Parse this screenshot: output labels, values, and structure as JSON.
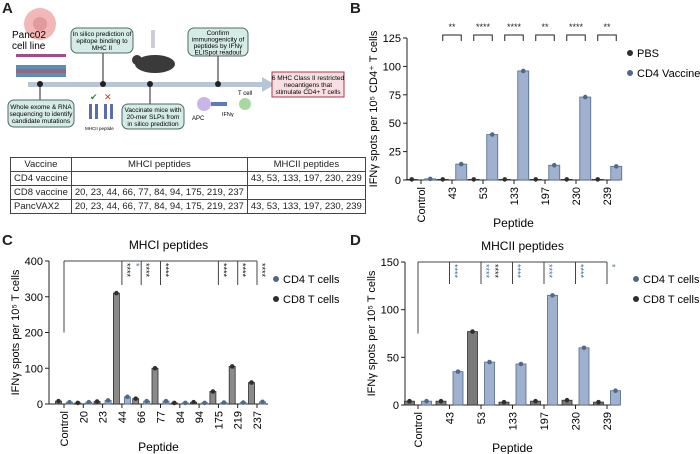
{
  "panel_labels": [
    "A",
    "B",
    "C",
    "D"
  ],
  "panelA": {
    "cell_line": [
      "Panc02",
      "cell line"
    ],
    "steps": [
      {
        "lines": [
          "Whole exome & RNA",
          "sequencing to identify",
          "candidate mutations"
        ]
      },
      {
        "lines": [
          "In silico prediction of",
          "epitope binding to",
          "MHC II"
        ]
      },
      {
        "lines": [
          "Vaccinate mice with",
          "20-mer SLPs from",
          "in silico prediction"
        ]
      },
      {
        "lines": [
          "Confirm",
          "immunogenicity of",
          "peptides by IFNγ",
          "ELISpot readout"
        ]
      }
    ],
    "result": [
      "6 MHC Class II restricted",
      "neoantigens that",
      "stimulate CD4+ T cells"
    ],
    "icon_labels": {
      "mhc": "MHCII peptide",
      "apc": "APC",
      "ifn": "IFNγ",
      "tcell": "T cell"
    },
    "table": {
      "headers": [
        "Vaccine",
        "MHCI peptides",
        "MHCII peptides"
      ],
      "rows": [
        [
          "CD4 vaccine",
          "",
          "43, 53, 133, 197, 230, 239"
        ],
        [
          "CD8 vaccine",
          "20, 23, 44, 66, 77, 84, 94, 175, 219, 237",
          ""
        ],
        [
          "PancVAX2",
          "20, 23, 44, 66, 77, 84, 94, 175, 219, 237",
          "43, 53, 133, 197, 230, 239"
        ]
      ]
    }
  },
  "chart_data": [
    {
      "id": "B",
      "type": "bar",
      "title": "",
      "xlabel": "Peptide",
      "ylabel": "IFNγ spots per 10⁵ CD4⁺ T cells",
      "ylim": [
        0,
        125
      ],
      "yticks": [
        0,
        25,
        50,
        75,
        100,
        125
      ],
      "categories": [
        "Control",
        "43",
        "53",
        "133",
        "197",
        "230",
        "239"
      ],
      "series": [
        {
          "name": "PBS",
          "color": "#2e2e2e",
          "fill": "#6e6e6e",
          "values": [
            0.5,
            0.5,
            0.5,
            0.5,
            0.5,
            0.5,
            0.5
          ]
        },
        {
          "name": "CD4 Vaccine",
          "color": "#4f6a88",
          "fill": "#9fb1cf",
          "values": [
            1,
            14,
            40,
            96,
            13,
            73,
            12
          ]
        }
      ],
      "significance": [
        {
          "category": "43",
          "label": "**",
          "color": "#222"
        },
        {
          "category": "53",
          "label": "****",
          "color": "#222"
        },
        {
          "category": "133",
          "label": "****",
          "color": "#222"
        },
        {
          "category": "197",
          "label": "**",
          "color": "#222"
        },
        {
          "category": "230",
          "label": "****",
          "color": "#222"
        },
        {
          "category": "239",
          "label": "**",
          "color": "#222"
        }
      ],
      "legend": "right"
    },
    {
      "id": "C",
      "type": "bar",
      "title": "MHCI peptides",
      "xlabel": "Peptide",
      "ylabel": "IFNγ spots per 10⁵ T cells",
      "ylim": [
        0,
        400
      ],
      "yticks": [
        0,
        100,
        200,
        300,
        400
      ],
      "categories": [
        "Control",
        "20",
        "23",
        "44",
        "66",
        "77",
        "84",
        "94",
        "175",
        "219",
        "237"
      ],
      "series": [
        {
          "name": "CD8 T cells",
          "color": "#2e2e2e",
          "fill": "#8a8a8a",
          "values": [
            8,
            3,
            7,
            310,
            15,
            100,
            3,
            5,
            35,
            105,
            60
          ]
        },
        {
          "name": "CD4 T cells",
          "color": "#4f6a88",
          "fill": "#9fb1cf",
          "values": [
            5,
            5,
            10,
            20,
            8,
            8,
            3,
            3,
            4,
            4,
            6
          ]
        }
      ],
      "significance": [
        {
          "category": "44",
          "label": "****",
          "color": "#222"
        },
        {
          "category": "44",
          "label": "*",
          "color": "#4a78a8"
        },
        {
          "category": "66",
          "label": "****",
          "color": "#222"
        },
        {
          "category": "77",
          "label": "****",
          "color": "#222"
        },
        {
          "category": "175",
          "label": "****",
          "color": "#222"
        },
        {
          "category": "219",
          "label": "****",
          "color": "#222"
        },
        {
          "category": "237",
          "label": "****",
          "color": "#222"
        }
      ],
      "legend": "right"
    },
    {
      "id": "D",
      "type": "bar",
      "title": "MHCII peptides",
      "xlabel": "Peptide",
      "ylabel": "IFNγ spots per 10⁵ T cells",
      "ylim": [
        0,
        150
      ],
      "yticks": [
        0,
        50,
        100,
        150
      ],
      "categories": [
        "Control",
        "43",
        "53",
        "133",
        "197",
        "230",
        "239"
      ],
      "series": [
        {
          "name": "CD8 T cells",
          "color": "#2e2e2e",
          "fill": "#7a7a7a",
          "values": [
            4,
            4,
            77,
            3,
            4,
            5,
            3
          ]
        },
        {
          "name": "CD4 T cells",
          "color": "#4f6a88",
          "fill": "#9fb1cf",
          "values": [
            4,
            35,
            45,
            43,
            115,
            60,
            15
          ]
        }
      ],
      "significance": [
        {
          "category": "43",
          "label": "****",
          "color": "#4a78a8"
        },
        {
          "category": "53",
          "label": "****",
          "color": "#4a78a8"
        },
        {
          "category": "53",
          "label": "****",
          "color": "#222"
        },
        {
          "category": "133",
          "label": "****",
          "color": "#4a78a8"
        },
        {
          "category": "197",
          "label": "****",
          "color": "#4a78a8"
        },
        {
          "category": "230",
          "label": "****",
          "color": "#4a78a8"
        },
        {
          "category": "239",
          "label": "*",
          "color": "#4a78a8"
        }
      ],
      "legend": "right"
    }
  ]
}
